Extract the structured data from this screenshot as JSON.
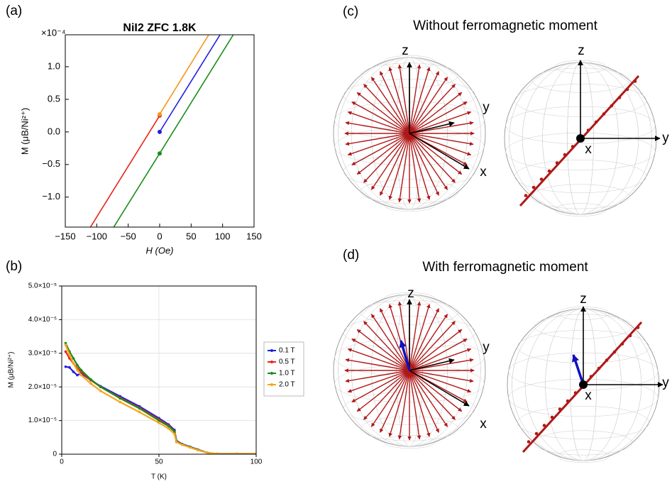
{
  "chart_data": [
    {
      "type": "line",
      "panel": "(a)",
      "title": "NiI2 ZFC 1.8K",
      "x_label": "H (Oe)",
      "y_label": "M (μB/Ni²⁺)",
      "y_multiplier": "×10⁻⁴",
      "xlim": [
        -150,
        150
      ],
      "ylim": [
        -1.46,
        1.49
      ],
      "xticks": [
        {
          "value": -150,
          "label": "−150"
        },
        {
          "value": -100,
          "label": "−100"
        },
        {
          "value": -50,
          "label": "−50"
        },
        0,
        50,
        100,
        150
      ],
      "yticks": [
        {
          "value": -1.0,
          "label": "−1.0"
        },
        {
          "value": -0.5,
          "label": "−0.5"
        },
        {
          "value": 0,
          "label": "0.0"
        },
        {
          "value": 0.5,
          "label": "0.5"
        },
        {
          "value": 1.0,
          "label": "1.0"
        }
      ],
      "grid": false,
      "series": [
        {
          "color": "#e8231b",
          "x": [
            -110,
            0
          ],
          "values": [
            -1.46,
            0.25
          ]
        },
        {
          "color": "#f7941d",
          "x": [
            0,
            78
          ],
          "values": [
            0.27,
            1.49
          ]
        },
        {
          "color": "#1f1fe0",
          "x": [
            0,
            96
          ],
          "values": [
            0.0,
            1.49
          ]
        },
        {
          "color": "#1a8c1a",
          "x": [
            -73,
            0,
            117
          ],
          "values": [
            -1.46,
            -0.33,
            1.49
          ]
        }
      ]
    },
    {
      "type": "line",
      "panel": "(b)",
      "x_label": "T (K)",
      "y_label": "M (μB/Ni²⁺)",
      "xlim": [
        0,
        100
      ],
      "ylim": [
        0,
        5e-05
      ],
      "xticks": [
        0,
        50,
        100
      ],
      "yticks": [
        0,
        {
          "value": 1e-05,
          "label": "1.0×10⁻⁵"
        },
        {
          "value": 2e-05,
          "label": "2.0×10⁻⁵"
        },
        {
          "value": 3e-05,
          "label": "3.0×10⁻⁵"
        },
        {
          "value": 4e-05,
          "label": "4.0×10⁻⁵"
        },
        {
          "value": 5e-05,
          "label": "5.0×10⁻⁵"
        }
      ],
      "grid": true,
      "legend": "outside-right",
      "x": [
        2,
        4,
        6,
        8,
        10,
        15,
        20,
        30,
        40,
        50,
        55,
        58,
        59,
        62,
        66,
        70,
        75,
        80,
        90,
        100
      ],
      "series": [
        {
          "name": "0.1 T",
          "color": "#1f1fe0",
          "values": [
            2.6e-05,
            2.58e-05,
            2.45e-05,
            2.35e-05,
            2.4e-05,
            2.2e-05,
            2.02e-05,
            1.72e-05,
            1.42e-05,
            1.07e-05,
            8.8e-06,
            7.2e-06,
            4e-06,
            3e-06,
            2.2e-06,
            1.4e-06,
            4e-07,
            1e-07,
            1e-07,
            1e-07
          ]
        },
        {
          "name": "0.5 T",
          "color": "#e8231b",
          "values": [
            3.05e-05,
            2.85e-05,
            2.7e-05,
            2.55e-05,
            2.45e-05,
            2.2e-05,
            2e-05,
            1.68e-05,
            1.38e-05,
            1.03e-05,
            8.5e-06,
            6.8e-06,
            3.8e-06,
            2.9e-06,
            2.1e-06,
            1.3e-06,
            4e-07,
            1e-07,
            1e-07,
            1e-07
          ]
        },
        {
          "name": "1.0 T",
          "color": "#1a8c1a",
          "values": [
            3.3e-05,
            3.05e-05,
            2.85e-05,
            2.65e-05,
            2.5e-05,
            2.22e-05,
            2e-05,
            1.66e-05,
            1.36e-05,
            1e-05,
            8.3e-06,
            6.7e-06,
            3.8e-06,
            2.9e-06,
            2.1e-06,
            1.3e-06,
            4e-07,
            1e-07,
            1e-07,
            1e-07
          ]
        },
        {
          "name": "2.0 T",
          "color": "#f7a51d",
          "values": [
            3.25e-05,
            2.95e-05,
            2.7e-05,
            2.5e-05,
            2.35e-05,
            2.1e-05,
            1.88e-05,
            1.55e-05,
            1.25e-05,
            9.3e-06,
            7.6e-06,
            6e-06,
            3.6e-06,
            2.8e-06,
            2e-06,
            1.2e-06,
            4e-07,
            1e-07,
            1e-07,
            1e-07
          ]
        }
      ]
    }
  ],
  "diagrams": [
    {
      "panel": "(c)",
      "title": "Without ferromagnetic moment",
      "left_axes": {
        "z": "z",
        "y": "y",
        "x": "x"
      },
      "right_axes": {
        "z": "z",
        "y": "y",
        "x": "x"
      }
    },
    {
      "panel": "(d)",
      "title": "With ferromagnetic moment",
      "left_axes": {
        "z": "z",
        "y": "y",
        "x": "x"
      },
      "right_axes": {
        "z": "z",
        "y": "y",
        "x": "x"
      }
    }
  ]
}
